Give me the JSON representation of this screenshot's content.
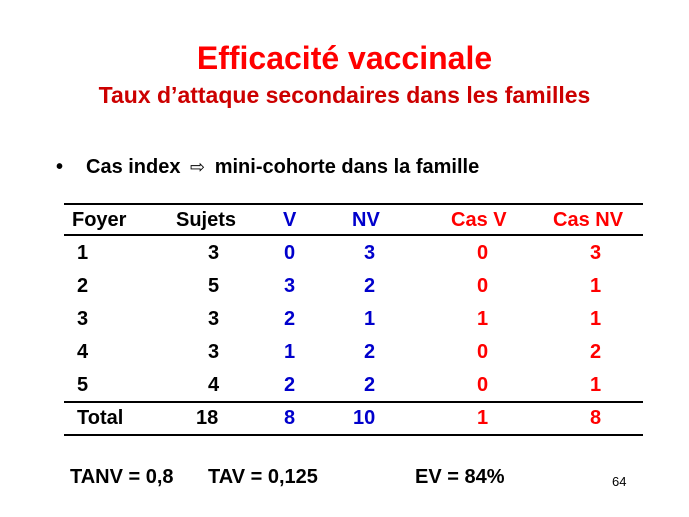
{
  "slide": {
    "title": "Efficacité vaccinale",
    "subtitle": "Taux d’attaque secondaires dans les familles",
    "bullet": {
      "marker": "•",
      "text_before": "Cas index",
      "arrow_icon": "hollow-right-arrow",
      "arrow_glyph": "⇨",
      "text_after": "mini-cohorte dans la famille"
    },
    "table": {
      "headers": [
        "Foyer",
        "Sujets",
        "V",
        "NV",
        "Cas V",
        "Cas NV"
      ],
      "rows": [
        [
          "1",
          "3",
          "0",
          "3",
          "0",
          "3"
        ],
        [
          "2",
          "5",
          "3",
          "2",
          "0",
          "1"
        ],
        [
          "3",
          "3",
          "2",
          "1",
          "1",
          "1"
        ],
        [
          "4",
          "3",
          "1",
          "2",
          "0",
          "2"
        ],
        [
          "5",
          "4",
          "2",
          "2",
          "0",
          "1"
        ]
      ],
      "total": [
        "Total",
        "18",
        "8",
        "10",
        "1",
        "8"
      ]
    },
    "footer": {
      "tanv": "TANV = 0,8",
      "tav": "TAV = 0,125",
      "ev": "EV = 84%"
    },
    "page_number": "64",
    "colors": {
      "title": "#ff0000",
      "subtitle": "#cc0000",
      "vaccinated_columns": "#0000cc",
      "cases_columns": "#ff0000",
      "text": "#000000"
    }
  }
}
